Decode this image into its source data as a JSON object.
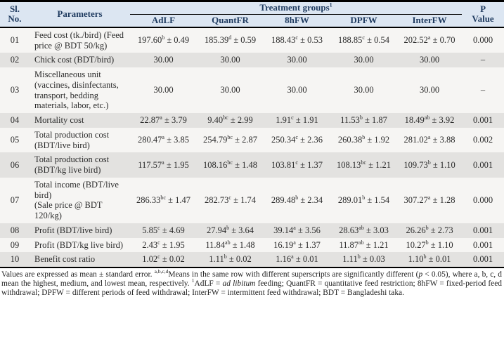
{
  "table": {
    "header": {
      "sl_no": "Sl.\nNo.",
      "parameters": "Parameters",
      "treatment_groups": "Treatment groups",
      "treatment_groups_sup": "1",
      "groups": [
        "AdLF",
        "QuantFR",
        "8hFW",
        "DPFW",
        "InterFW"
      ],
      "p_value": "P\nValue"
    },
    "rows": [
      {
        "no": "01",
        "param": "Feed cost (tk./bird) (Feed price @ BDT 50/kg)",
        "values": [
          "197.60^b^ ± 0.49",
          "185.39^d^ ± 0.59",
          "188.43^c^ ± 0.53",
          "188.85^c^ ± 0.54",
          "202.52^a^ ± 0.70"
        ],
        "p": "0.000"
      },
      {
        "no": "02",
        "param": "Chick cost (BDT/bird)",
        "values": [
          "30.00",
          "30.00",
          "30.00",
          "30.00",
          "30.00"
        ],
        "p": "–"
      },
      {
        "no": "03",
        "param": "Miscellaneous unit (vaccines, disinfectants, transport, bedding materials, labor, etc.)",
        "values": [
          "30.00",
          "30.00",
          "30.00",
          "30.00",
          "30.00"
        ],
        "p": "–"
      },
      {
        "no": "04",
        "param": "Mortality cost",
        "values": [
          "22.87^a^ ± 3.79",
          "9.40^bc^ ± 2.99",
          "1.91^c^ ± 1.91",
          "11.53^b^ ± 1.87",
          "18.49^ab^ ± 3.92"
        ],
        "p": "0.001"
      },
      {
        "no": "05",
        "param": "Total production cost (BDT/live bird)",
        "values": [
          "280.47^a^ ± 3.85",
          "254.79^bc^ ± 2.87",
          "250.34^c^ ± 2.36",
          "260.38^b^ ± 1.92",
          "281.02^a^ ± 3.88"
        ],
        "p": "0.002"
      },
      {
        "no": "06",
        "param": "Total production cost (BDT/kg live bird)",
        "values": [
          "117.57^a^ ± 1.95",
          "108.16^bc^ ± 1.48",
          "103.81^c^ ± 1.37",
          "108.13^bc^ ± 1.21",
          "109.73^b^ ± 1.10"
        ],
        "p": "0.001"
      },
      {
        "no": "07",
        "param": "Total income (BDT/live bird)\n(Sale price @ BDT 120/kg)",
        "values": [
          "286.33^bc^ ± 1.47",
          "282.73^c^ ± 1.74",
          "289.48^b^ ± 2.34",
          "289.01^b^ ± 1.54",
          "307.27^a^ ± 1.28"
        ],
        "p": "0.000"
      },
      {
        "no": "08",
        "param": "Profit (BDT/live bird)",
        "values": [
          "5.85^c^ ± 4.69",
          "27.94^b^ ± 3.64",
          "39.14^a^ ± 3.56",
          "28.63^ab^ ± 3.03",
          "26.26^b^ ± 2.73"
        ],
        "p": "0.001"
      },
      {
        "no": "09",
        "param": "Profit (BDT/kg live bird)",
        "values": [
          "2.43^c^ ± 1.95",
          "11.84^ab^ ± 1.48",
          "16.19^a^ ± 1.37",
          "11.87^ab^ ± 1.21",
          "10.27^b^ ± 1.10"
        ],
        "p": "0.001"
      },
      {
        "no": "10",
        "param": "Benefit cost ratio",
        "values": [
          "1.02^c^ ± 0.02",
          "1.11^b^ ± 0.02",
          "1.16^a^ ± 0.01",
          "1.11^b^ ± 0.03",
          "1.10^b^ ± 0.01"
        ],
        "p": "0.001"
      }
    ]
  },
  "footnote": {
    "segments": [
      {
        "t": "Values are expressed as mean ± standard error. "
      },
      {
        "sup": "a,b,c,d"
      },
      {
        "t": "Means in the same row with different superscripts are significantly different ("
      },
      {
        "t": "p",
        "i": true
      },
      {
        "t": " < 0.05), where a, b, c, d mean the highest, medium, and lowest mean, respectively. "
      },
      {
        "sup": "1"
      },
      {
        "t": "AdLF = "
      },
      {
        "t": "ad libitum",
        "i": true
      },
      {
        "t": " feeding; QuantFR = quantitative feed restriction; 8hFW = fixed-period feed withdrawal; DPFW = different periods of feed withdrawal; InterFW = intermittent feed withdrawal; BDT = Bangladeshi taka."
      }
    ]
  },
  "colors": {
    "header_bg": "#dce6f2",
    "header_text": "#1e3a5f",
    "row_odd_bg": "#f6f5f3",
    "row_even_bg": "#e3e2e0",
    "border": "#000000"
  }
}
